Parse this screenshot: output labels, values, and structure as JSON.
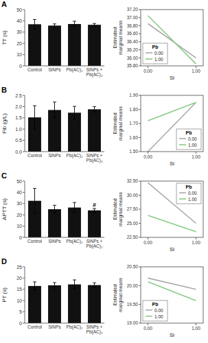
{
  "chart_data": [
    {
      "type": "bar",
      "title": "A",
      "ylabel": "TT (s)",
      "categories": [
        "Control",
        "SiNPs",
        "Pb(AC)₂",
        "SiNPs +\nPb(AC)₂"
      ],
      "values": [
        37.0,
        35.8,
        37.2,
        36.5
      ],
      "errors": [
        4.2,
        1.5,
        2.5,
        1.2
      ],
      "color": "#111111",
      "ylim": [
        0,
        50
      ],
      "yticks": [
        0,
        10,
        20,
        30,
        40,
        50
      ],
      "grid": false
    },
    {
      "type": "line",
      "xlabel": "Si",
      "ylabel": "Estimated\nmarginal means",
      "x": [
        0.0,
        1.0
      ],
      "xlim": [
        -0.15,
        1.15
      ],
      "xticks": [
        {
          "value": 0,
          "label": "0.00"
        },
        {
          "value": 1,
          "label": "1.00"
        }
      ],
      "ylim": [
        35.8,
        37.2
      ],
      "yticks": [
        {
          "value": 35.8,
          "label": "35.80"
        },
        {
          "value": 36,
          "label": "36.00"
        },
        {
          "value": 36.2,
          "label": "36.20"
        },
        {
          "value": 36.4,
          "label": "36.40"
        },
        {
          "value": 36.6,
          "label": "36.60"
        },
        {
          "value": 36.8,
          "label": "36.80"
        },
        {
          "value": 37,
          "label": "37.00"
        },
        {
          "value": 37.2,
          "label": "37.20"
        }
      ],
      "series": [
        {
          "name": "0.00",
          "color": "#aaaaaa",
          "values": [
            36.85,
            36.0
          ]
        },
        {
          "name": "1.00",
          "color": "#88cc88",
          "values": [
            37.05,
            35.85
          ]
        }
      ],
      "legend": "lower left",
      "legend_title": "Pb",
      "grid": false
    },
    {
      "type": "bar",
      "title": "B",
      "ylabel": "Fib (g/L)",
      "categories": [
        "Control",
        "SiNPs",
        "Pb(AC)₂",
        "SiNPs +\nPb(AC)₂"
      ],
      "values": [
        1.52,
        1.85,
        1.73,
        1.88
      ],
      "errors": [
        0.52,
        0.35,
        0.28,
        0.12
      ],
      "color": "#111111",
      "ylim": [
        0,
        2.5
      ],
      "yticks": [
        {
          "value": 0,
          "label": "0.0"
        },
        0.5,
        {
          "value": 1,
          "label": "1.0"
        },
        1.5,
        {
          "value": 2,
          "label": "2.0"
        },
        2.5
      ],
      "grid": false
    },
    {
      "type": "line",
      "xlabel": "Si",
      "ylabel": "Estimated\nmarginal means",
      "x": [
        0.0,
        1.0
      ],
      "xlim": [
        -0.15,
        1.15
      ],
      "xticks": [
        {
          "value": 0,
          "label": "0.00"
        },
        {
          "value": 1,
          "label": "1.00"
        }
      ],
      "ylim": [
        1.5,
        1.9
      ],
      "yticks": [
        {
          "value": 1.5,
          "label": "1.50"
        },
        {
          "value": 1.6,
          "label": "1.60"
        },
        {
          "value": 1.7,
          "label": "1.70"
        },
        {
          "value": 1.8,
          "label": "1.80"
        },
        {
          "value": 1.9,
          "label": "1.90"
        }
      ],
      "series": [
        {
          "name": "0.00",
          "color": "#aaaaaa",
          "values": [
            1.5,
            1.85
          ]
        },
        {
          "name": "1.00",
          "color": "#88cc88",
          "values": [
            1.72,
            1.85
          ]
        }
      ],
      "legend": "lower right",
      "legend_title": "Pb",
      "grid": false
    },
    {
      "type": "bar",
      "title": "C",
      "ylabel": "APTT (s)",
      "categories": [
        "Control",
        "SiNPs",
        "Pb(AC)₂",
        "SiNPs +\nPb(AC)₂"
      ],
      "values": [
        32.5,
        25.0,
        26.5,
        24.0
      ],
      "errors": [
        11.0,
        3.5,
        4.5,
        1.5
      ],
      "color": "#111111",
      "ylim": [
        0,
        50
      ],
      "yticks": [
        0,
        10,
        20,
        30,
        40,
        50
      ],
      "grid": false,
      "annotations": [
        {
          "text": "#",
          "category": "SiNPs +\nPb(AC)₂"
        }
      ]
    },
    {
      "type": "line",
      "xlabel": "Si",
      "ylabel": "Estimated\nmarginal means",
      "x": [
        0.0,
        1.0
      ],
      "xlim": [
        -0.15,
        1.15
      ],
      "xticks": [
        {
          "value": 0,
          "label": "0.00"
        },
        {
          "value": 1,
          "label": "1.00"
        }
      ],
      "ylim": [
        22.5,
        32.5
      ],
      "yticks": [
        {
          "value": 22.5,
          "label": "22.50"
        },
        {
          "value": 25,
          "label": "25.00"
        },
        {
          "value": 27.5,
          "label": "27.50"
        },
        {
          "value": 30,
          "label": "30.00"
        },
        {
          "value": 32.5,
          "label": "32.50"
        }
      ],
      "series": [
        {
          "name": "0.00",
          "color": "#aaaaaa",
          "values": [
            32.2,
            25.0
          ]
        },
        {
          "name": "1.00",
          "color": "#88cc88",
          "values": [
            26.4,
            23.5
          ]
        }
      ],
      "legend": "upper right",
      "legend_title": "Pb",
      "grid": false
    },
    {
      "type": "bar",
      "title": "D",
      "ylabel": "PT (s)",
      "categories": [
        "Control",
        "SiNPs",
        "Pb(AC)₂",
        "SiNPs +\nPb(AC)₂"
      ],
      "values": [
        16.5,
        16.8,
        17.2,
        16.9
      ],
      "errors": [
        1.8,
        1.2,
        2.0,
        1.0
      ],
      "color": "#111111",
      "ylim": [
        0,
        25
      ],
      "yticks": [
        0,
        5,
        10,
        15,
        20,
        25
      ],
      "grid": false
    },
    {
      "type": "line",
      "xlabel": "Si",
      "ylabel": "Estimated\nmarginal means",
      "x": [
        0.0,
        1.0
      ],
      "xlim": [
        -0.15,
        1.15
      ],
      "xticks": [
        {
          "value": 0,
          "label": "0.00"
        },
        {
          "value": 1,
          "label": "1.00"
        }
      ],
      "ylim": [
        19,
        20.5
      ],
      "yticks": [
        {
          "value": 19,
          "label": "19.00"
        },
        {
          "value": 19.5,
          "label": "19.50"
        },
        {
          "value": 20,
          "label": "20.00"
        },
        {
          "value": 20.5,
          "label": "20.50"
        }
      ],
      "series": [
        {
          "name": "0.00",
          "color": "#aaaaaa",
          "values": [
            20.2,
            19.9
          ]
        },
        {
          "name": "1.00",
          "color": "#88cc88",
          "values": [
            20.1,
            19.6
          ]
        }
      ],
      "legend": "lower left",
      "legend_title": "Pb",
      "grid": false
    }
  ]
}
